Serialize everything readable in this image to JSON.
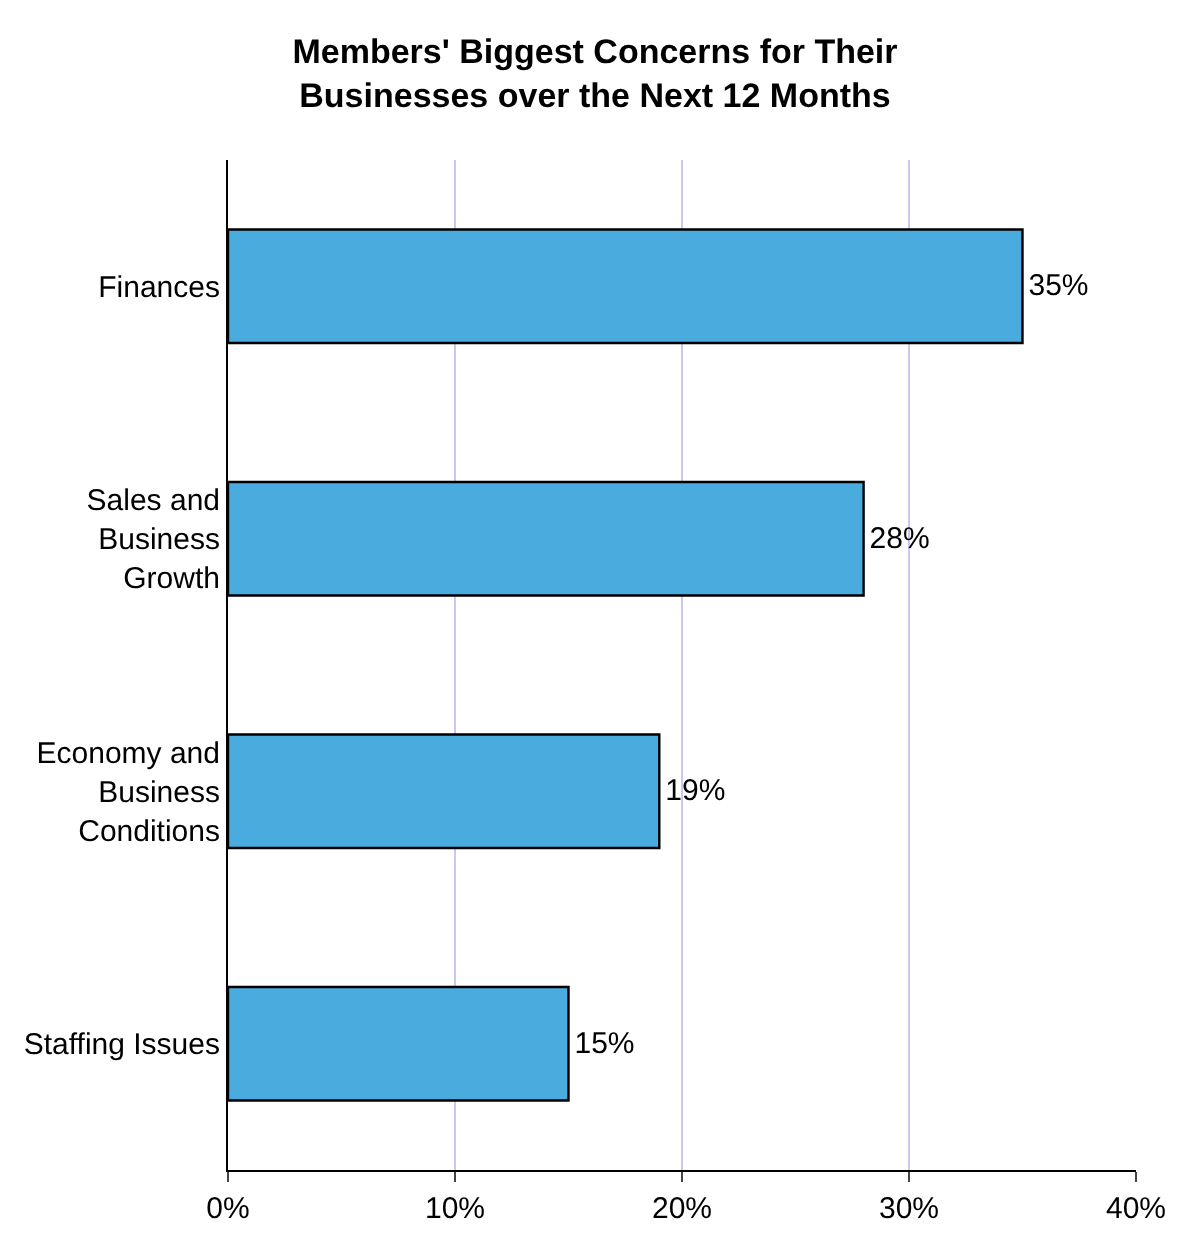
{
  "chart_data": {
    "type": "bar",
    "orientation": "horizontal",
    "title": "Members' Biggest Concerns for Their\nBusinesses over the Next 12 Months",
    "categories": [
      "Finances",
      "Sales and\nBusiness\nGrowth",
      "Economy and\nBusiness\nConditions",
      "Staffing Issues"
    ],
    "values": [
      35,
      28,
      19,
      15
    ],
    "value_labels": [
      "35%",
      "28%",
      "19%",
      "15%"
    ],
    "color": "#4aabdf",
    "xlim": [
      0,
      40
    ],
    "xticks": [
      {
        "value": 0,
        "label": "0%"
      },
      {
        "value": 10,
        "label": "10%"
      },
      {
        "value": 20,
        "label": "20%"
      },
      {
        "value": 30,
        "label": "30%"
      },
      {
        "value": 40,
        "label": "40%"
      }
    ],
    "grid": "x",
    "legend": false
  }
}
